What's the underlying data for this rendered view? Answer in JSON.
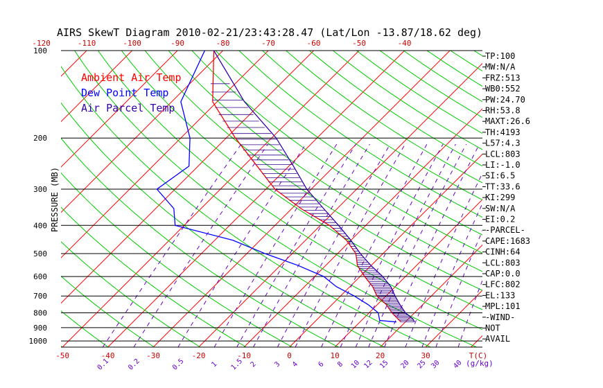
{
  "chart_data": {
    "type": "line",
    "title": "AIRS SkewT Diagram 2010-02-21/23:43:28.47 (Lat/Lon -13.87/18.62 deg)",
    "ylabel": "PRESSURE (MB)",
    "pressure_ticks": [
      100,
      200,
      300,
      400,
      500,
      600,
      700,
      800,
      900,
      1000
    ],
    "ylim_mb": [
      100,
      1050
    ],
    "y_scale": "log",
    "top_temp_ticks": [
      -120,
      -110,
      -100,
      -90,
      -80,
      -70,
      -60,
      -50,
      -40
    ],
    "bottom_temp_ticks": [
      -50,
      -40,
      -30,
      -20,
      -10,
      0,
      10,
      20,
      30
    ],
    "bottom_temp_unit": "T(C)",
    "mixing_ratio_labels": [
      "0.1",
      "0.2",
      "0.5",
      "1",
      "1.5",
      "2",
      "3",
      "4",
      "6",
      "8",
      "10",
      "12",
      "15",
      "20",
      "25",
      "30",
      "40"
    ],
    "mixing_ratio_unit": "(g/kg)",
    "grid": true,
    "legend_position": "top-left",
    "legend": [
      {
        "label": "Ambient Air Temp",
        "color": "#ff0000"
      },
      {
        "label": "Dew Point Temp",
        "color": "#0000ff"
      },
      {
        "label": "Air Parcel Temp",
        "color": "#3300aa"
      }
    ],
    "series": [
      {
        "name": "Ambient Air Temp",
        "color": "#ff0000",
        "points": [
          [
            100,
            -82
          ],
          [
            150,
            -71
          ],
          [
            200,
            -58
          ],
          [
            250,
            -47
          ],
          [
            300,
            -38
          ],
          [
            350,
            -28
          ],
          [
            400,
            -18
          ],
          [
            450,
            -11
          ],
          [
            500,
            -6
          ],
          [
            550,
            -3
          ],
          [
            600,
            1
          ],
          [
            650,
            5
          ],
          [
            700,
            8
          ],
          [
            750,
            12
          ],
          [
            800,
            15
          ],
          [
            860,
            19
          ]
        ]
      },
      {
        "name": "Dew Point Temp",
        "color": "#0000ff",
        "points": [
          [
            100,
            -84
          ],
          [
            150,
            -78
          ],
          [
            200,
            -68
          ],
          [
            250,
            -62
          ],
          [
            300,
            -64
          ],
          [
            350,
            -56
          ],
          [
            400,
            -52
          ],
          [
            450,
            -36
          ],
          [
            500,
            -26
          ],
          [
            550,
            -16
          ],
          [
            600,
            -8
          ],
          [
            650,
            -3
          ],
          [
            700,
            3
          ],
          [
            750,
            8
          ],
          [
            800,
            12
          ],
          [
            850,
            14
          ],
          [
            860,
            18
          ]
        ]
      },
      {
        "name": "Air Parcel Temp",
        "color": "#3300aa",
        "points": [
          [
            100,
            -82
          ],
          [
            150,
            -64
          ],
          [
            200,
            -49
          ],
          [
            250,
            -39
          ],
          [
            300,
            -31
          ],
          [
            350,
            -23
          ],
          [
            400,
            -16
          ],
          [
            450,
            -10
          ],
          [
            500,
            -5
          ],
          [
            550,
            0
          ],
          [
            600,
            5
          ],
          [
            650,
            9
          ],
          [
            700,
            12
          ],
          [
            750,
            15
          ],
          [
            800,
            18
          ],
          [
            840,
            21
          ],
          [
            860,
            22
          ]
        ]
      }
    ]
  },
  "indices": [
    "TP:100",
    "MW:N/A",
    "FRZ:513",
    "WB0:552",
    "PW:24.70",
    "RH:53.8",
    "MAXT:26.6",
    "TH:4193",
    "L57:4.3",
    "LCL:803",
    "LI:-1.0",
    "SI:6.5",
    "TT:33.6",
    "KI:299",
    "SW:N/A",
    "EI:0.2",
    "-PARCEL-",
    "CAPE:1683",
    "CINH:64",
    "LCL:803",
    "CAP:0.0",
    "LFC:802",
    "EL:133",
    "MPL:101",
    "-WIND-",
    "NOT",
    "AVAIL"
  ],
  "colors": {
    "dry_adiabat": "#00cc00",
    "isotherm": "#ff0000",
    "mixing_ratio": "#6600cc",
    "isobar": "#000000",
    "axis_text": "#cc0000",
    "label_text": "#000000"
  }
}
